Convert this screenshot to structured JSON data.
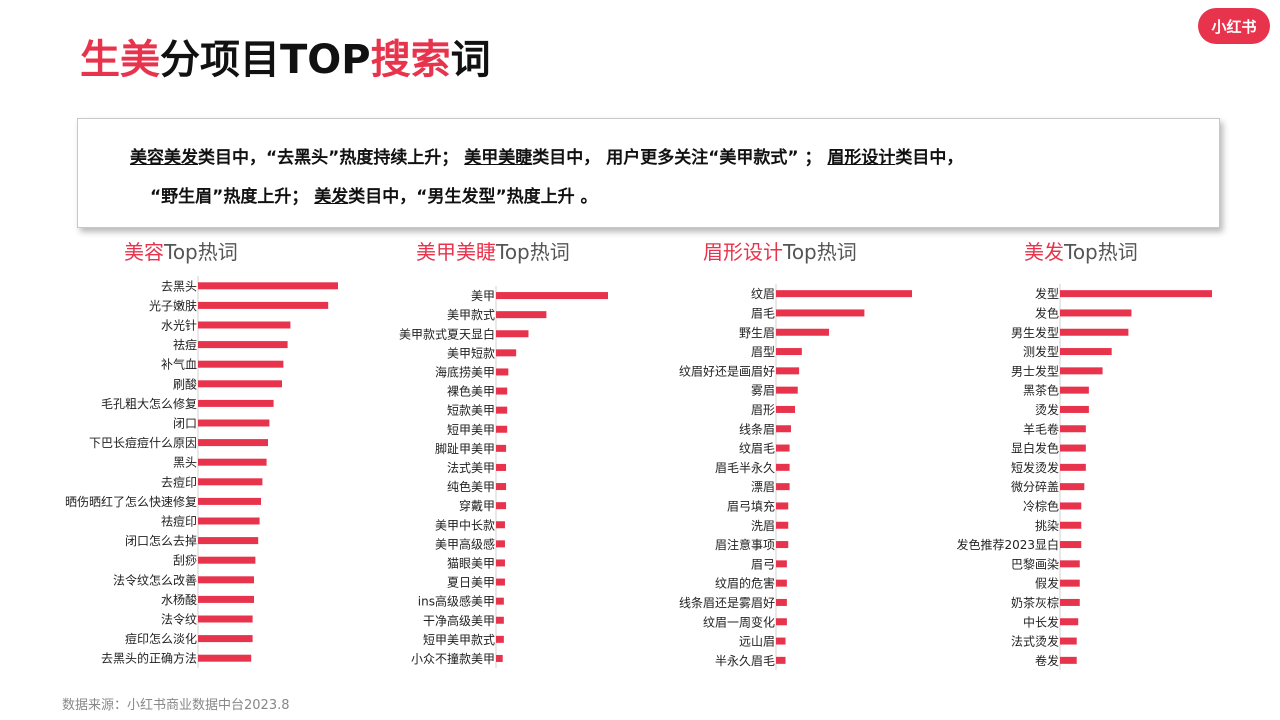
{
  "header": {
    "title_part1": "生美",
    "title_part2": "分项目TOP",
    "title_part3": "搜索",
    "title_part4": "词",
    "logo": "小红书"
  },
  "summary": {
    "line1_seg1": "美容美发",
    "line1_seg2": "类目中，“去黑头”热度持续上升；",
    "line1_seg3": "美甲美睫",
    "line1_seg4": "类目中，  用户更多关注“美甲款式”  ；",
    "line1_seg5": "眉形设计",
    "line1_seg6": "类目中，",
    "line2_seg1": "“野生眉”热度上升；",
    "line2_seg2": "美发",
    "line2_seg3": "类目中，“男生发型”热度上升 。"
  },
  "footer": {
    "source": "数据来源：小红书商业数据中台2023.8"
  },
  "colors": {
    "accent": "#e8334d"
  },
  "chart_data": [
    {
      "type": "bar",
      "orientation": "horizontal",
      "title": "美容Top热词",
      "title_highlight": "美容",
      "title_rest": "Top热词",
      "categories": [
        "去黑头",
        "光子嫩肤",
        "水光针",
        "祛痘",
        "补气血",
        "刷酸",
        "毛孔粗大怎么修复",
        "闭口",
        "下巴长痘痘什么原因",
        "黑头",
        "去痘印",
        "晒伤晒红了怎么快速修复",
        "祛痘印",
        "闭口怎么去掉",
        "刮痧",
        "法令纹怎么改善",
        "水杨酸",
        "法令纹",
        "痘印怎么淡化",
        "去黑头的正确方法"
      ],
      "values": [
        100,
        93,
        66,
        64,
        61,
        60,
        54,
        51,
        50,
        49,
        46,
        45,
        44,
        43,
        41,
        40,
        40,
        39,
        39,
        38
      ]
    },
    {
      "type": "bar",
      "orientation": "horizontal",
      "title": "美甲美睫Top热词",
      "title_highlight": "美甲美睫",
      "title_rest": "Top热词",
      "categories": [
        "美甲",
        "美甲款式",
        "美甲款式夏天显白",
        "美甲短款",
        "海底捞美甲",
        "裸色美甲",
        "短款美甲",
        "短甲美甲",
        "脚趾甲美甲",
        "法式美甲",
        "纯色美甲",
        "穿戴甲",
        "美甲中长款",
        "美甲高级感",
        "猫眼美甲",
        "夏日美甲",
        "ins高级感美甲",
        "干净高级美甲",
        "短甲美甲款式",
        "小众不撞款美甲"
      ],
      "values": [
        100,
        45,
        29,
        18,
        11,
        10,
        10,
        10,
        9,
        9,
        9,
        9,
        8,
        8,
        8,
        8,
        7,
        7,
        7,
        6
      ]
    },
    {
      "type": "bar",
      "orientation": "horizontal",
      "title": "眉形设计Top热词",
      "title_highlight": "眉形设计",
      "title_rest": "Top热词",
      "categories": [
        "纹眉",
        "眉毛",
        "野生眉",
        "眉型",
        "纹眉好还是画眉好",
        "雾眉",
        "眉形",
        "线条眉",
        "纹眉毛",
        "眉毛半永久",
        "漂眉",
        "眉弓填充",
        "洗眉",
        "眉注意事项",
        "眉弓",
        "纹眉的危害",
        "线条眉还是雾眉好",
        "纹眉一周变化",
        "远山眉",
        "半永久眉毛"
      ],
      "values": [
        100,
        65,
        39,
        19,
        17,
        16,
        14,
        11,
        10,
        10,
        10,
        9,
        9,
        9,
        8,
        8,
        8,
        8,
        7,
        7
      ]
    },
    {
      "type": "bar",
      "orientation": "horizontal",
      "title": "美发Top热词",
      "title_highlight": "美发",
      "title_rest": "Top热词",
      "categories": [
        "发型",
        "发色",
        "男生发型",
        "测发型",
        "男士发型",
        "黑茶色",
        "烫发",
        "羊毛卷",
        "显白发色",
        "短发烫发",
        "微分碎盖",
        "冷棕色",
        "挑染",
        "发色推荐2023显白",
        "巴黎画染",
        "假发",
        "奶茶灰棕",
        "中长发",
        "法式烫发",
        "卷发"
      ],
      "values": [
        100,
        47,
        45,
        34,
        28,
        19,
        19,
        17,
        17,
        17,
        16,
        14,
        14,
        14,
        13,
        13,
        13,
        12,
        11,
        11
      ]
    }
  ]
}
